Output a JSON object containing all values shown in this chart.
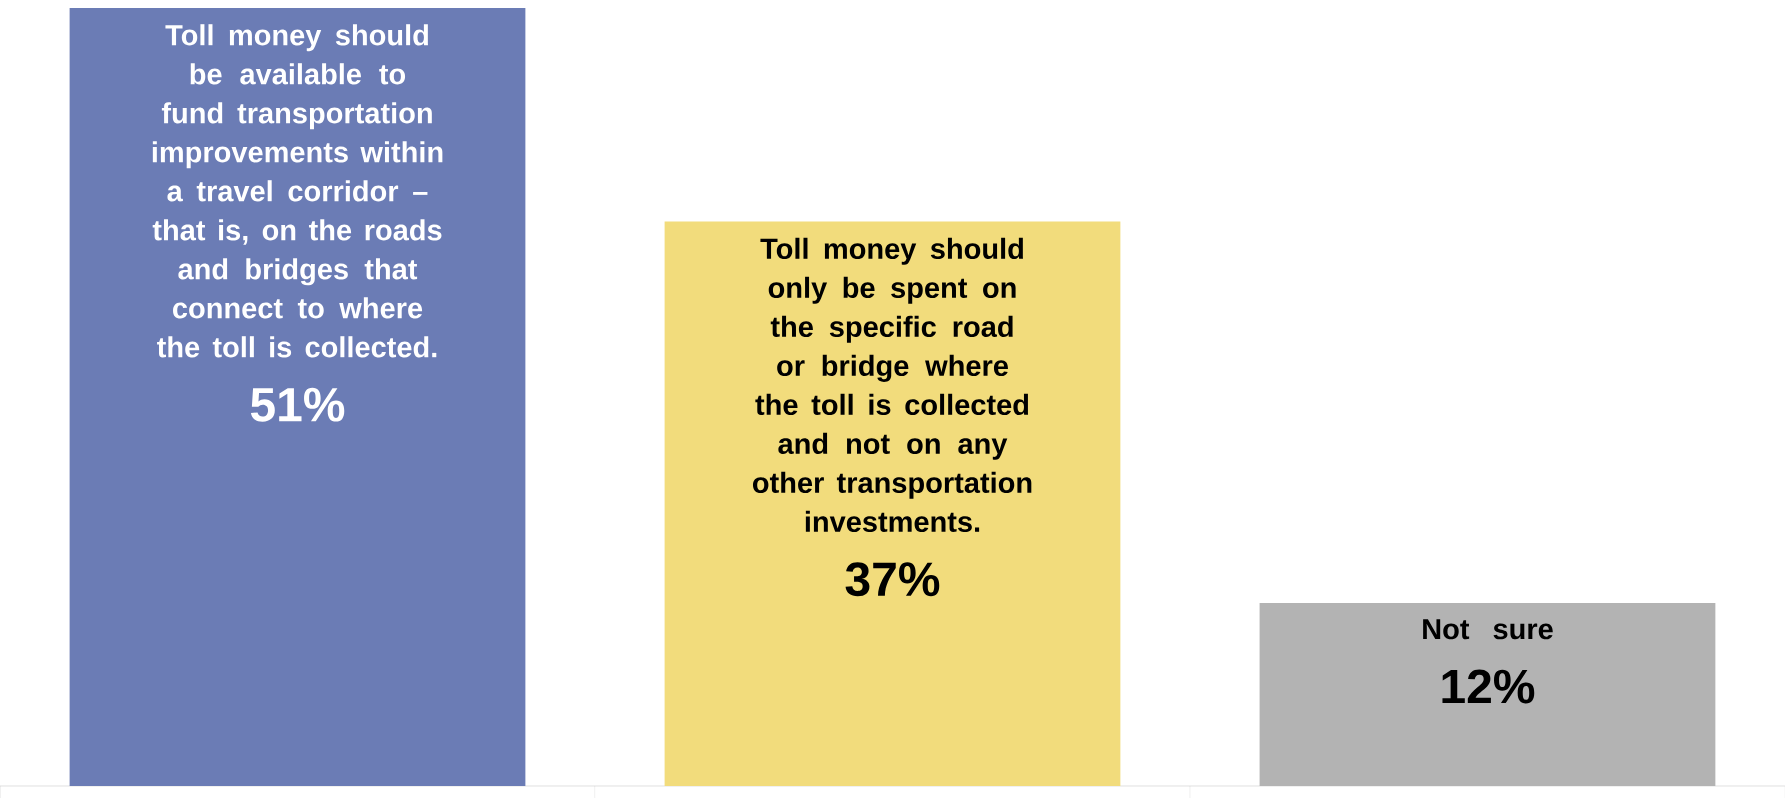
{
  "chart_data": {
    "type": "bar",
    "categories": [
      "Toll money should be available to fund transportation improvements within a travel corridor – that is, on the roads and bridges that connect to where the toll is collected.",
      "Toll money should only be spent on the specific road or bridge where the toll is collected and not on any other transportation investments.",
      "Not sure"
    ],
    "values": [
      51,
      37,
      12
    ],
    "colors": [
      "#6b7cb5",
      "#f2dc7c",
      "#b3b3b3"
    ],
    "value_labels": [
      "51%",
      "37%",
      "12%"
    ]
  }
}
